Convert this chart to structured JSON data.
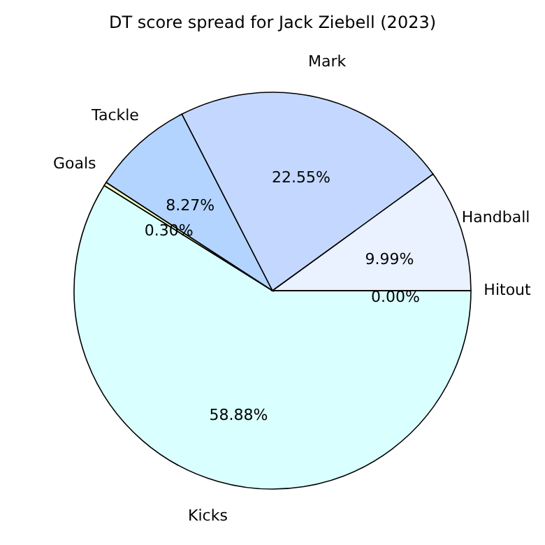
{
  "chart_data": {
    "type": "pie",
    "title": "DT score spread for Jack Ziebell (2023)",
    "categories": [
      "Kicks",
      "Goals",
      "Tackle",
      "Mark",
      "Handball",
      "Hitout"
    ],
    "values": [
      58.88,
      0.3,
      8.27,
      22.55,
      9.99,
      0.0
    ],
    "colors": [
      "#d9ffff",
      "#f0ffc0",
      "#b3d4ff",
      "#c4d8ff",
      "#eaf1ff",
      "#ffffff"
    ],
    "value_labels": [
      "58.88%",
      "0.30%",
      "8.27%",
      "22.55%",
      "9.99%",
      "0.00%"
    ],
    "legend": false
  }
}
